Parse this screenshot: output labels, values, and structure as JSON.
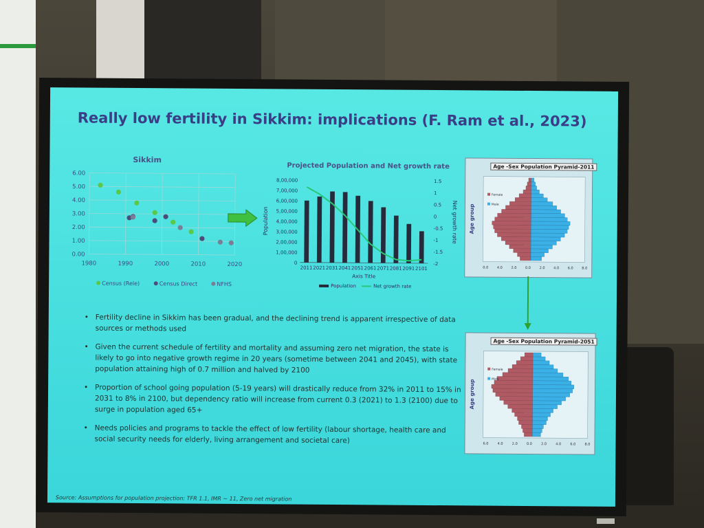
{
  "slide": {
    "title": "Really low fertility in Sikkim: implications (F. Ram et al., 2023)",
    "source": "Source: Assumptions for population projection: TFR 1.1, IMR ~ 11, Zero net migration",
    "bullets": [
      "Fertility decline in Sikkim has been gradual, and the declining trend is apparent irrespective of data sources or methods used",
      "Given the current schedule of fertility and mortality and assuming zero net migration, the state is likely to go into negative growth regime in 20 years (sometime between 2041 and 2045), with state population attaining high of 0.7 million and halved by 2100",
      "Proportion of school going population (5-19 years) will drastically reduce from 32% in 2011 to 15% in 2031 to 8% in 2100, but dependency ratio will increase from current 0.3 (2021) to 1.3 (2100) due to surge in population aged 65+",
      "Needs policies and programs to tackle the effect of low fertility (labour shortage, health care and social security needs for elderly, living arrangement and societal care)"
    ]
  },
  "chart_data": [
    {
      "type": "scatter",
      "title": "Sikkim",
      "xlabel": "",
      "ylabel": "",
      "xlim": [
        1980,
        2020
      ],
      "ylim": [
        0,
        6
      ],
      "x_ticks": [
        "1980",
        "1990",
        "2000",
        "2010",
        "2020"
      ],
      "y_ticks": [
        "0.00",
        "1.00",
        "2.00",
        "3.00",
        "4.00",
        "5.00",
        "6.00"
      ],
      "grid": true,
      "legend_position": "bottom",
      "series": [
        {
          "name": "Census (Rele)",
          "color": "#5cc84a",
          "points": [
            [
              1983,
              5.1
            ],
            [
              1988,
              4.6
            ],
            [
              1993,
              3.8
            ],
            [
              1998,
              3.1
            ],
            [
              2003,
              2.4
            ],
            [
              2008,
              1.7
            ]
          ]
        },
        {
          "name": "Census Direct",
          "color": "#4a4c7a",
          "points": [
            [
              1991,
              2.7
            ],
            [
              1992,
              2.8
            ],
            [
              1998,
              2.5
            ],
            [
              2001,
              2.8
            ],
            [
              2011,
              1.2
            ]
          ]
        },
        {
          "name": "NFHS",
          "color": "#7a7e96",
          "points": [
            [
              1992,
              2.75
            ],
            [
              2005,
              2.0
            ],
            [
              2016,
              0.95
            ],
            [
              2019,
              0.9
            ]
          ]
        }
      ]
    },
    {
      "type": "bar",
      "title": "Projected Population and Net growth rate",
      "xlabel": "Axis Title",
      "ylabel": "Population",
      "y2label": "Net growth rate",
      "categories": [
        "2011",
        "2021",
        "2031",
        "2041",
        "2051",
        "2061",
        "2071",
        "2081",
        "2091",
        "2101"
      ],
      "ylim": [
        0,
        800000
      ],
      "y_ticks": [
        "0",
        "1,00,000",
        "2,00,000",
        "3,00,000",
        "4,00,000",
        "5,00,000",
        "6,00,000",
        "7,00,000",
        "8,00,000"
      ],
      "y2lim": [
        -2,
        1.5
      ],
      "y2_ticks": [
        "1.5",
        "1",
        "0.5",
        "0",
        "-0.5",
        "-1",
        "-1.5",
        "-2"
      ],
      "legend_position": "bottom",
      "series": [
        {
          "name": "Population",
          "type": "bar",
          "color": "#262a3a",
          "values": [
            600000,
            640000,
            690000,
            685000,
            650000,
            600000,
            540000,
            460000,
            380000,
            310000
          ]
        },
        {
          "name": "Net growth rate",
          "type": "line",
          "axis": "right",
          "color": "#28c878",
          "values": [
            1.2,
            0.9,
            0.5,
            0.0,
            -0.6,
            -1.2,
            -1.6,
            -1.85,
            -1.9,
            -1.85
          ]
        }
      ]
    },
    {
      "type": "bar",
      "subtype": "population-pyramid",
      "title": "Age -Sex Population Pyramid-2011",
      "ylabel": "Age group",
      "legend": [
        "Female",
        "Male"
      ],
      "left_color": "#b05a64",
      "right_color": "#3ab0e6",
      "left_values": [
        0.8,
        1.0,
        1.3,
        1.6,
        1.9,
        2.2,
        2.5,
        2.7,
        2.8,
        2.9,
        2.7,
        2.5,
        2.2,
        1.9,
        1.6,
        1.2,
        0.9,
        0.6,
        0.4,
        0.3,
        0.2
      ],
      "right_values": [
        0.8,
        1.0,
        1.3,
        1.6,
        1.9,
        2.2,
        2.5,
        2.7,
        2.8,
        2.9,
        2.7,
        2.5,
        2.2,
        1.9,
        1.6,
        1.2,
        0.9,
        0.6,
        0.4,
        0.3,
        0.2
      ],
      "x_ticks": [
        "0.0",
        "4.0",
        "2.0",
        "0.0",
        "2.0",
        "4.0",
        "6.0",
        "8.0"
      ]
    },
    {
      "type": "bar",
      "subtype": "population-pyramid",
      "title": "Age -Sex Population Pyramid-2051",
      "ylabel": "Age group",
      "legend": [
        "Female",
        "Male"
      ],
      "left_color": "#b05a64",
      "right_color": "#3ab0e6",
      "left_values": [
        0.6,
        0.7,
        0.8,
        1.0,
        1.1,
        1.3,
        1.5,
        1.8,
        2.1,
        2.4,
        2.7,
        2.9,
        3.0,
        2.8,
        2.6,
        2.2,
        1.8,
        1.5,
        1.2,
        0.9,
        0.6
      ],
      "right_values": [
        0.6,
        0.7,
        0.8,
        1.0,
        1.1,
        1.3,
        1.5,
        1.8,
        2.1,
        2.4,
        2.7,
        2.9,
        3.0,
        2.8,
        2.6,
        2.2,
        1.8,
        1.5,
        1.2,
        0.9,
        0.6
      ],
      "x_ticks": [
        "6.0",
        "4.0",
        "2.0",
        "0.0",
        "2.0",
        "4.0",
        "6.0",
        "8.0"
      ]
    }
  ]
}
